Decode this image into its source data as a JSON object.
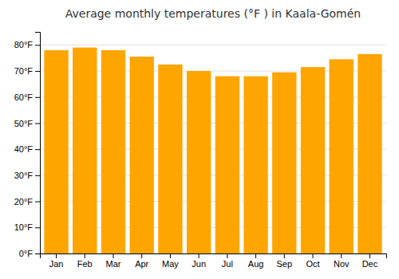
{
  "chart_data": {
    "type": "bar",
    "title": "Average monthly temperatures (°F ) in Kaala-Gomén",
    "categories": [
      "Jan",
      "Feb",
      "Mar",
      "Apr",
      "May",
      "Jun",
      "Jul",
      "Aug",
      "Sep",
      "Oct",
      "Nov",
      "Dec"
    ],
    "values": [
      78,
      79,
      78,
      75.5,
      72.5,
      70,
      68,
      68,
      69.5,
      71.5,
      74.5,
      76.5
    ],
    "color": "#FFA500",
    "ylim": [
      0,
      85
    ],
    "yticks": [
      {
        "value": 0,
        "label": "0°F"
      },
      {
        "value": 10,
        "label": "10°F"
      },
      {
        "value": 20,
        "label": "20°F"
      },
      {
        "value": 30,
        "label": "30°F"
      },
      {
        "value": 40,
        "label": "40°F"
      },
      {
        "value": 50,
        "label": "50°F"
      },
      {
        "value": 60,
        "label": "60°F"
      },
      {
        "value": 70,
        "label": "70°F"
      },
      {
        "value": 80,
        "label": "80°F"
      }
    ],
    "grid": true
  }
}
